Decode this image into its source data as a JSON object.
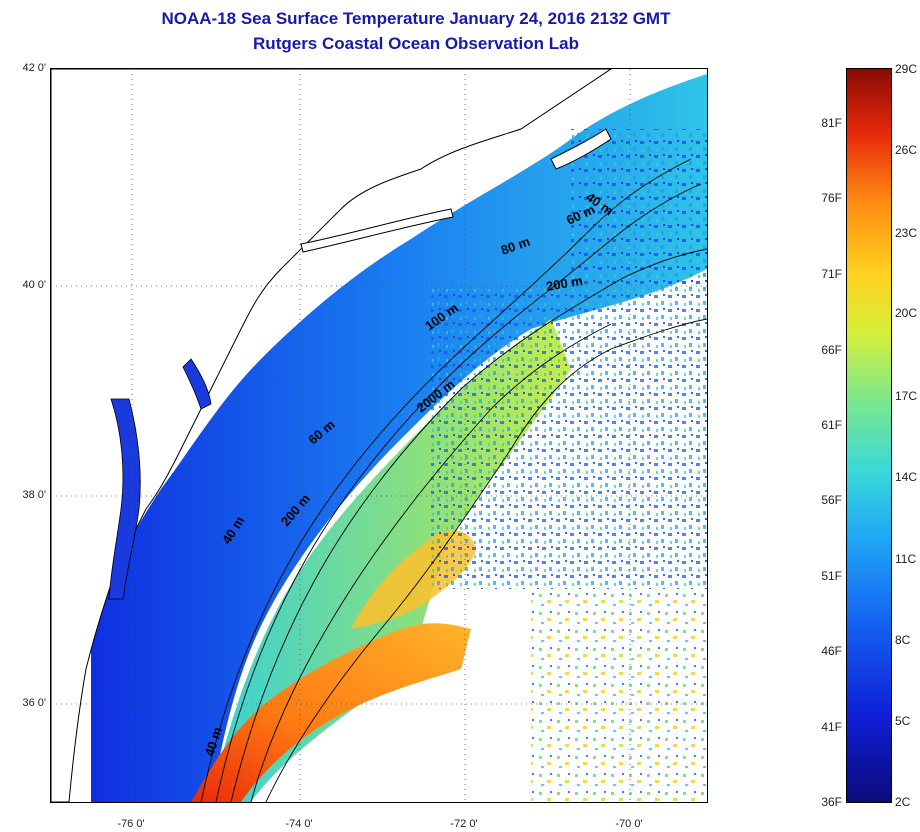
{
  "title": {
    "line1": "NOAA-18 Sea Surface Temperature January 24, 2016 2132 GMT",
    "line2": "Rutgers Coastal Ocean Observation Lab"
  },
  "map": {
    "lat_labels": [
      "42 0'",
      "40 0'",
      "38 0'",
      "36 0'"
    ],
    "lon_labels": [
      "-76 0'",
      "-74 0'",
      "-72 0'",
      "-70 0'"
    ],
    "depth_labels": [
      "40 m",
      "60 m",
      "80 m",
      "200 m",
      "100 m",
      "2000 m",
      "60 m",
      "200 m",
      "40 m",
      "40 m"
    ]
  },
  "colorbar": {
    "fahrenheit": [
      "81F",
      "76F",
      "71F",
      "66F",
      "61F",
      "56F",
      "51F",
      "46F",
      "41F",
      "36F"
    ],
    "celsius": [
      "29C",
      "26C",
      "23C",
      "20C",
      "17C",
      "14C",
      "11C",
      "8C",
      "5C",
      "2C"
    ]
  },
  "colors": {
    "title": "#1a1aa8",
    "land": "#ffffff",
    "coast": "#000000",
    "cold": "#0f1fd8",
    "cool": "#1fa7f5",
    "mild": "#7ee88a",
    "warm": "#ff8a12",
    "hot": "#e82a0b"
  }
}
